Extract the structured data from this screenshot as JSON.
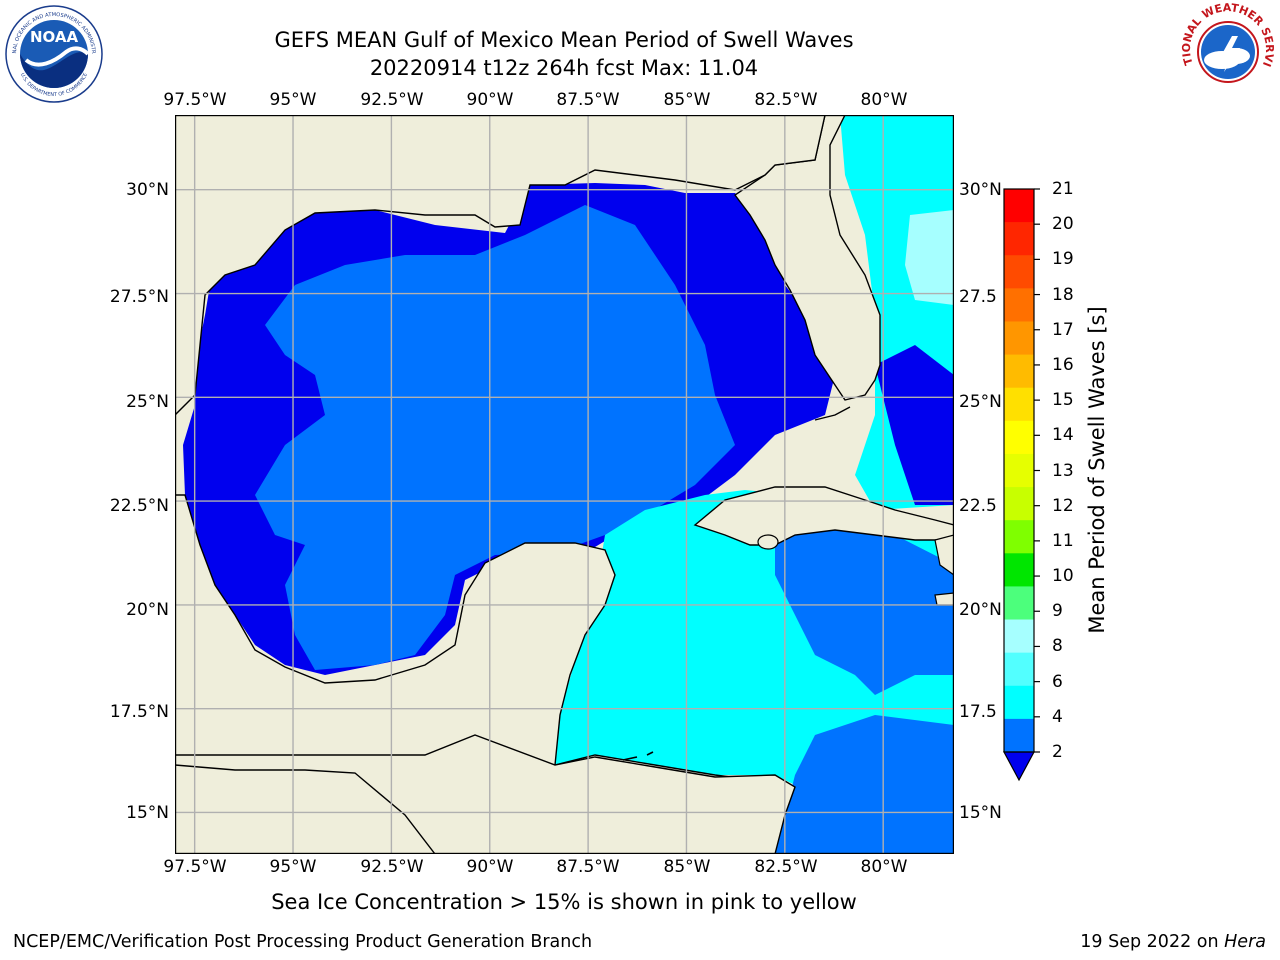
{
  "header": {
    "title_line1": "GEFS MEAN Gulf of Mexico Mean Period of Swell Waves",
    "title_line2": "20220914 t12z 264h fcst   Max: 11.04"
  },
  "logos": {
    "noaa_text": "NOAA",
    "noaa_ring_top": "NATIONAL OCEANIC AND ATMOSPHERIC ADMINISTRATION",
    "noaa_ring_bottom": "U.S. DEPARTMENT OF COMMERCE",
    "nws_ring": "NATIONAL WEATHER SERVICE"
  },
  "map": {
    "lon_labels": [
      "97.5°W",
      "95°W",
      "92.5°W",
      "90°W",
      "87.5°W",
      "85°W",
      "82.5°W",
      "80°W"
    ],
    "lat_labels_left": [
      "30°N",
      "27.5°N",
      "25°N",
      "22.5°N",
      "20°N",
      "17.5°N",
      "15°N"
    ],
    "lat_labels_right": [
      "30°N",
      "27.5",
      "25°N",
      "22.5",
      "20°N",
      "17.5",
      "15°N"
    ],
    "extent": {
      "lon_min": -98,
      "lon_max": -78.2,
      "lat_min": 14,
      "lat_max": 31.8
    },
    "colors": {
      "land": "#efeedb",
      "ocean_deep": "#0000ee",
      "ocean_mid": "#0073ff",
      "ocean_light": "#00ffff",
      "grid": "#b0b0b0"
    }
  },
  "colorbar": {
    "label": "Mean Period of Swell Waves [s]",
    "ticks": [
      "21",
      "20",
      "19",
      "18",
      "17",
      "16",
      "15",
      "14",
      "13",
      "12",
      "11",
      "10",
      "9",
      "8",
      "6",
      "4",
      "2"
    ],
    "colors": [
      "#ff0000",
      "#ff2600",
      "#ff4b00",
      "#ff7000",
      "#ff9600",
      "#ffbb00",
      "#ffe000",
      "#ffff00",
      "#e6ff00",
      "#c8ff00",
      "#7fff00",
      "#00e600",
      "#4cff7c",
      "#a6ffff",
      "#52ffff",
      "#00ffff",
      "#0073ff",
      "#0000ee"
    ]
  },
  "caption": "Sea Ice Concentration > 15% is shown in pink to yellow",
  "footer": {
    "left": "NCEP/EMC/Verification Post Processing Product Generation Branch",
    "right_date": "19 Sep 2022 on ",
    "right_host": "Hera"
  }
}
